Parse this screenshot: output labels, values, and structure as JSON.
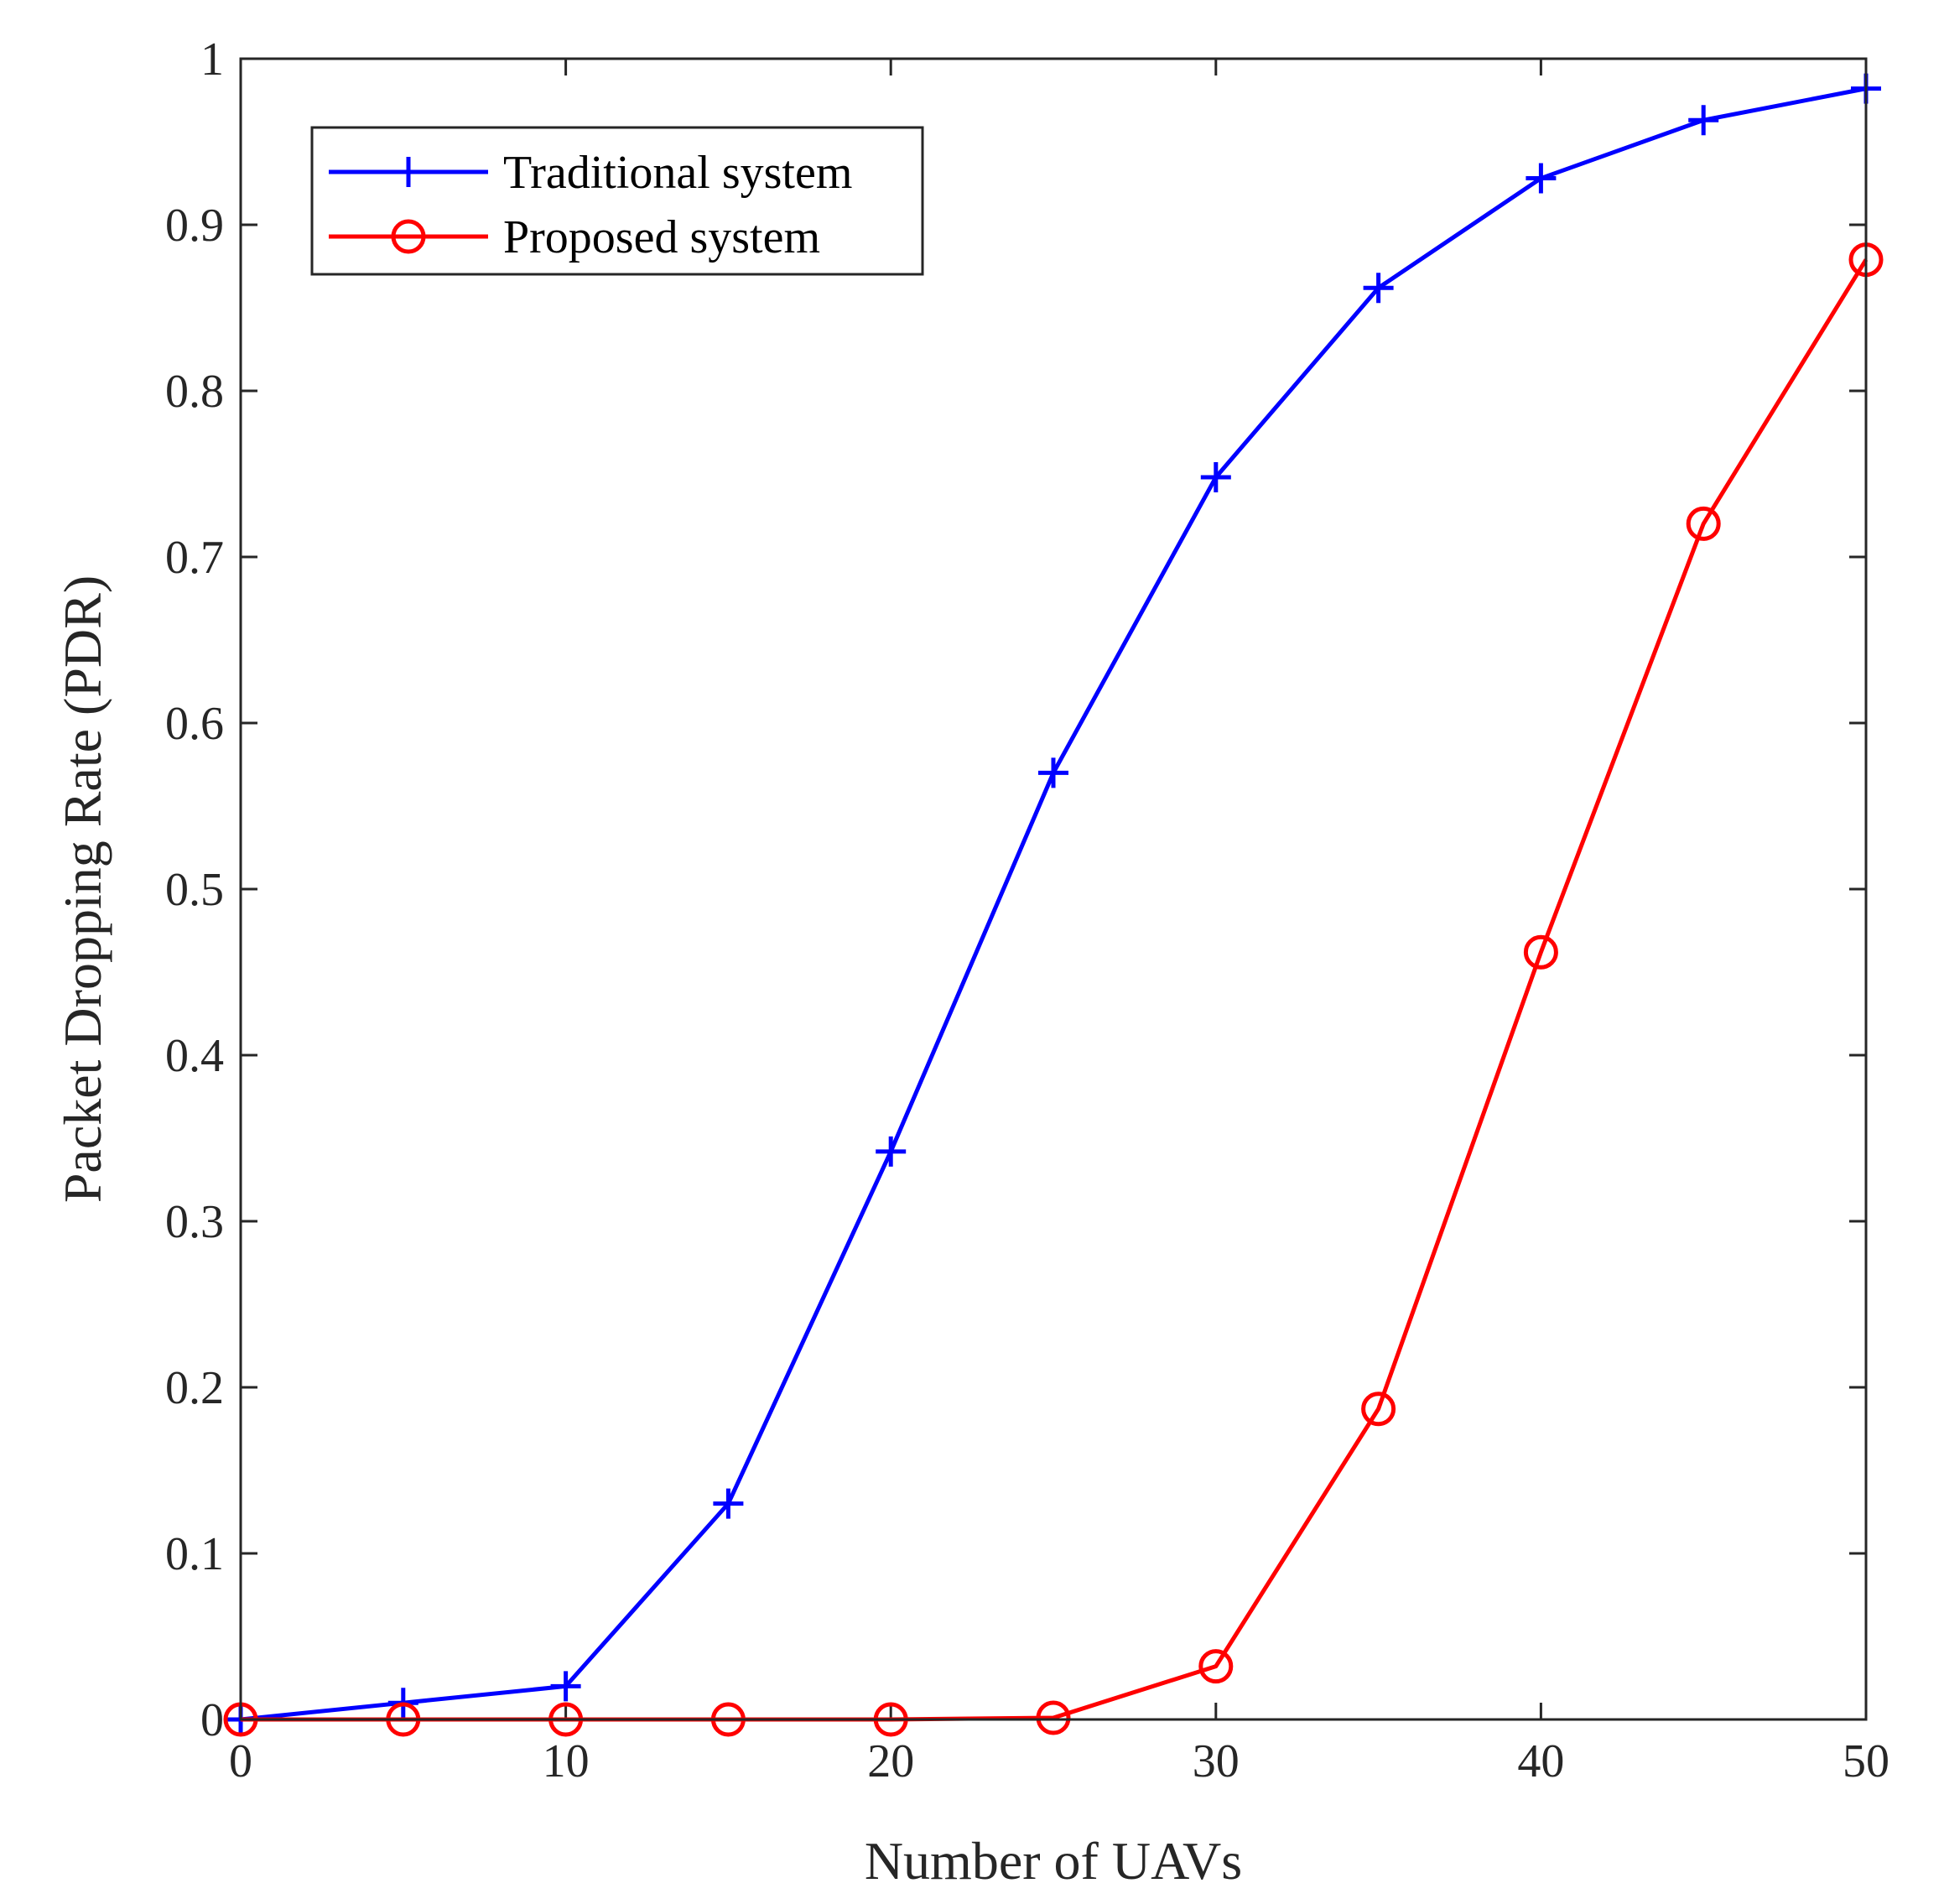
{
  "chart_data": {
    "type": "line",
    "title": "",
    "xlabel": "Number of UAVs",
    "ylabel": "Packet Dropping Rate (PDR)",
    "xlim": [
      0,
      50
    ],
    "ylim": [
      0,
      1
    ],
    "xticks": [
      0,
      10,
      20,
      30,
      40,
      50
    ],
    "yticks": [
      0,
      0.1,
      0.2,
      0.3,
      0.4,
      0.5,
      0.6,
      0.7,
      0.8,
      0.9,
      1
    ],
    "xtick_labels": [
      "0",
      "10",
      "20",
      "30",
      "40",
      "50"
    ],
    "ytick_labels": [
      "0",
      "0.1",
      "0.2",
      "0.3",
      "0.4",
      "0.5",
      "0.6",
      "0.7",
      "0.8",
      "0.9",
      "1"
    ],
    "grid": false,
    "legend_position": "top-left",
    "x": [
      0,
      5,
      10,
      15,
      20,
      25,
      30,
      35,
      40,
      45,
      50
    ],
    "series": [
      {
        "name": "Traditional system",
        "color": "#0000ff",
        "marker": "plus",
        "values": [
          0.0,
          0.01,
          0.02,
          0.13,
          0.342,
          0.57,
          0.748,
          0.862,
          0.928,
          0.963,
          0.982
        ]
      },
      {
        "name": "Proposed system",
        "color": "#ff0000",
        "marker": "circle",
        "values": [
          0.0,
          0.0,
          0.0,
          0.0,
          0.0,
          0.001,
          0.032,
          0.187,
          0.462,
          0.72,
          0.879
        ]
      }
    ]
  }
}
